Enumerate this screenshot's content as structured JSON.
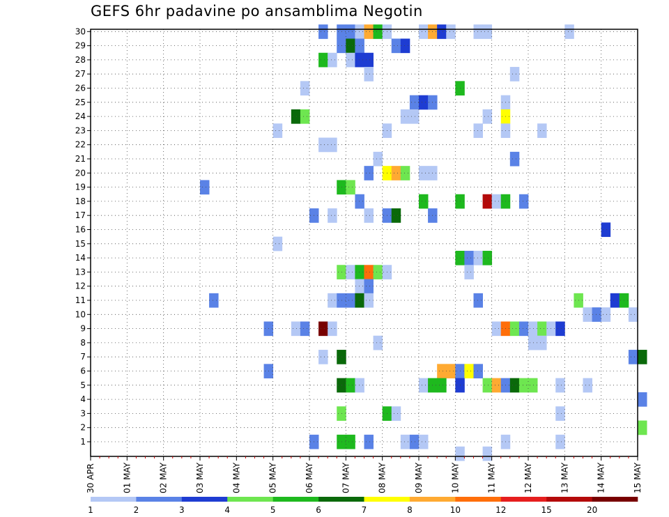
{
  "chart_data": {
    "type": "heatmap",
    "title": "GEFS 6hr padavine po ansamblima Negotin",
    "y_categories": [
      "1",
      "2",
      "3",
      "4",
      "5",
      "6",
      "7",
      "8",
      "9",
      "10",
      "11",
      "12",
      "13",
      "14",
      "15",
      "16",
      "17",
      "18",
      "19",
      "20",
      "21",
      "22",
      "23",
      "24",
      "25",
      "26",
      "27",
      "28",
      "29",
      "30"
    ],
    "x_categories": [
      "30 APR",
      "01 MAY",
      "02 MAY",
      "03 MAY",
      "04 MAY",
      "05 MAY",
      "06 MAY",
      "07 MAY",
      "08 MAY",
      "09 MAY",
      "10 MAY",
      "11 MAY",
      "12 MAY",
      "13 MAY",
      "14 MAY",
      "15 MAY"
    ],
    "x_step_hours": 6,
    "grid": true,
    "legend": {
      "position": "bottom",
      "labels": [
        "1",
        "2",
        "3",
        "4",
        "5",
        "6",
        "7",
        "8",
        "10",
        "12",
        "15",
        "20"
      ],
      "colors": [
        "#b4c8f5",
        "#5a82e6",
        "#1e3cd2",
        "#6ee650",
        "#1eb91e",
        "#0a690a",
        "#ffff00",
        "#ffaa32",
        "#ff6e0a",
        "#e61e1e",
        "#b40a0a",
        "#780000"
      ]
    },
    "cells": [
      [
        25,
        30,
        2
      ],
      [
        27,
        30,
        2
      ],
      [
        28,
        30,
        2
      ],
      [
        29,
        30,
        1
      ],
      [
        30,
        30,
        8
      ],
      [
        31,
        30,
        5
      ],
      [
        32,
        30,
        1
      ],
      [
        36,
        30,
        1
      ],
      [
        37,
        30,
        8
      ],
      [
        38,
        30,
        3
      ],
      [
        39,
        30,
        1
      ],
      [
        42,
        30,
        1
      ],
      [
        43,
        30,
        1
      ],
      [
        52,
        30,
        1
      ],
      [
        27,
        29,
        2
      ],
      [
        28,
        29,
        6
      ],
      [
        29,
        29,
        2
      ],
      [
        33,
        29,
        2
      ],
      [
        34,
        29,
        3
      ],
      [
        25,
        28,
        5
      ],
      [
        26,
        28,
        1
      ],
      [
        28,
        28,
        1
      ],
      [
        29,
        28,
        3
      ],
      [
        30,
        28,
        3
      ],
      [
        30,
        27,
        1
      ],
      [
        46,
        27,
        1
      ],
      [
        23,
        26,
        1
      ],
      [
        40,
        26,
        5
      ],
      [
        35,
        25,
        2
      ],
      [
        36,
        25,
        3
      ],
      [
        37,
        25,
        2
      ],
      [
        45,
        25,
        1
      ],
      [
        22,
        24,
        6
      ],
      [
        23,
        24,
        4
      ],
      [
        34,
        24,
        1
      ],
      [
        35,
        24,
        1
      ],
      [
        43,
        24,
        1
      ],
      [
        45,
        24,
        7
      ],
      [
        20,
        23,
        1
      ],
      [
        32,
        23,
        1
      ],
      [
        42,
        23,
        1
      ],
      [
        45,
        23,
        1
      ],
      [
        49,
        23,
        1
      ],
      [
        25,
        22,
        1
      ],
      [
        26,
        22,
        1
      ],
      [
        31,
        21,
        1
      ],
      [
        46,
        21,
        2
      ],
      [
        30,
        20,
        2
      ],
      [
        32,
        20,
        7
      ],
      [
        33,
        20,
        8
      ],
      [
        34,
        20,
        4
      ],
      [
        36,
        20,
        1
      ],
      [
        37,
        20,
        1
      ],
      [
        12,
        19,
        2
      ],
      [
        27,
        19,
        5
      ],
      [
        28,
        19,
        4
      ],
      [
        29,
        18,
        2
      ],
      [
        36,
        18,
        5
      ],
      [
        40,
        18,
        5
      ],
      [
        43,
        18,
        11
      ],
      [
        44,
        18,
        1
      ],
      [
        45,
        18,
        5
      ],
      [
        47,
        18,
        2
      ],
      [
        24,
        17,
        2
      ],
      [
        26,
        17,
        1
      ],
      [
        30,
        17,
        1
      ],
      [
        32,
        17,
        2
      ],
      [
        33,
        17,
        6
      ],
      [
        37,
        17,
        2
      ],
      [
        56,
        16,
        3
      ],
      [
        20,
        15,
        1
      ],
      [
        40,
        14,
        5
      ],
      [
        41,
        14,
        2
      ],
      [
        42,
        14,
        1
      ],
      [
        43,
        14,
        5
      ],
      [
        27,
        13,
        4
      ],
      [
        28,
        13,
        1
      ],
      [
        29,
        13,
        5
      ],
      [
        30,
        13,
        9
      ],
      [
        31,
        13,
        4
      ],
      [
        32,
        13,
        1
      ],
      [
        41,
        13,
        1
      ],
      [
        29,
        12,
        1
      ],
      [
        30,
        12,
        2
      ],
      [
        13,
        11,
        2
      ],
      [
        26,
        11,
        1
      ],
      [
        27,
        11,
        2
      ],
      [
        28,
        11,
        2
      ],
      [
        29,
        11,
        6
      ],
      [
        30,
        11,
        1
      ],
      [
        42,
        11,
        2
      ],
      [
        53,
        11,
        4
      ],
      [
        57,
        11,
        3
      ],
      [
        58,
        11,
        5
      ],
      [
        54,
        10,
        1
      ],
      [
        55,
        10,
        2
      ],
      [
        56,
        10,
        1
      ],
      [
        59,
        10,
        1
      ],
      [
        19,
        9,
        2
      ],
      [
        22,
        9,
        1
      ],
      [
        23,
        9,
        2
      ],
      [
        25,
        9,
        12
      ],
      [
        26,
        9,
        1
      ],
      [
        44,
        9,
        1
      ],
      [
        45,
        9,
        9
      ],
      [
        46,
        9,
        4
      ],
      [
        47,
        9,
        2
      ],
      [
        48,
        9,
        1
      ],
      [
        49,
        9,
        4
      ],
      [
        50,
        9,
        1
      ],
      [
        51,
        9,
        3
      ],
      [
        31,
        8,
        1
      ],
      [
        48,
        8,
        1
      ],
      [
        49,
        8,
        1
      ],
      [
        25,
        7,
        1
      ],
      [
        27,
        7,
        6
      ],
      [
        59,
        7,
        2
      ],
      [
        60,
        7,
        6
      ],
      [
        19,
        6,
        2
      ],
      [
        38,
        6,
        8
      ],
      [
        39,
        6,
        8
      ],
      [
        40,
        6,
        2
      ],
      [
        41,
        6,
        7
      ],
      [
        42,
        6,
        2
      ],
      [
        27,
        5,
        6
      ],
      [
        28,
        5,
        5
      ],
      [
        29,
        5,
        1
      ],
      [
        36,
        5,
        1
      ],
      [
        37,
        5,
        5
      ],
      [
        38,
        5,
        5
      ],
      [
        40,
        5,
        3
      ],
      [
        43,
        5,
        4
      ],
      [
        44,
        5,
        8
      ],
      [
        45,
        5,
        2
      ],
      [
        46,
        5,
        6
      ],
      [
        47,
        5,
        4
      ],
      [
        48,
        5,
        4
      ],
      [
        51,
        5,
        1
      ],
      [
        54,
        5,
        1
      ],
      [
        60,
        4,
        2
      ],
      [
        27,
        3,
        4
      ],
      [
        32,
        3,
        5
      ],
      [
        33,
        3,
        1
      ],
      [
        51,
        3,
        1
      ],
      [
        60,
        2,
        4
      ],
      [
        24,
        1,
        2
      ],
      [
        27,
        1,
        5
      ],
      [
        28,
        1,
        5
      ],
      [
        30,
        1,
        2
      ],
      [
        34,
        1,
        1
      ],
      [
        35,
        1,
        2
      ],
      [
        36,
        1,
        1
      ],
      [
        45,
        1,
        1
      ],
      [
        51,
        1,
        1
      ],
      [
        40,
        0,
        1
      ],
      [
        43,
        0,
        1
      ]
    ]
  }
}
